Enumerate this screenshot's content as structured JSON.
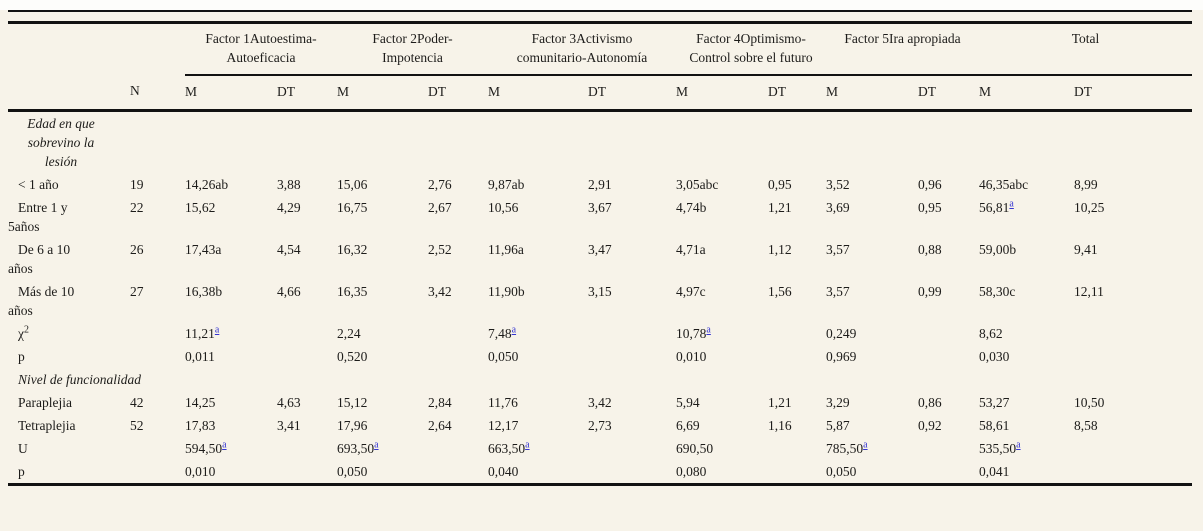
{
  "table": {
    "groups": [
      {
        "label": "Factor 1Autoestima-Autoeficacia"
      },
      {
        "label": "Factor 2Poder-Impotencia"
      },
      {
        "label": "Factor 3Activismo comunitario-Autonomía"
      },
      {
        "label": "Factor 4Optimismo-Control sobre el futuro"
      },
      {
        "label": "Factor 5Ira apropiada"
      },
      {
        "label": "Total"
      }
    ],
    "sub_headers": [
      "",
      "N",
      "M",
      "DT",
      "M",
      "DT",
      "M",
      "DT",
      "M",
      "DT",
      "M",
      "DT",
      "M",
      "DT"
    ],
    "rows": [
      {
        "style": "section-center",
        "label": {
          "t": "Edad en que sobrevino la lesión",
          "sup": ""
        },
        "n": "",
        "cells": [
          {
            "t": ""
          },
          {
            "t": ""
          },
          {
            "t": ""
          },
          {
            "t": ""
          },
          {
            "t": ""
          },
          {
            "t": ""
          },
          {
            "t": ""
          },
          {
            "t": ""
          },
          {
            "t": ""
          },
          {
            "t": ""
          },
          {
            "t": ""
          },
          {
            "t": ""
          }
        ]
      },
      {
        "style": "",
        "label": {
          "t": "< 1 año",
          "sup": ""
        },
        "n": "19",
        "cells": [
          {
            "t": "14,26ab"
          },
          {
            "t": "3,88"
          },
          {
            "t": "15,06"
          },
          {
            "t": "2,76"
          },
          {
            "t": "9,87ab"
          },
          {
            "t": "2,91"
          },
          {
            "t": "3,05abc"
          },
          {
            "t": "0,95"
          },
          {
            "t": "3,52"
          },
          {
            "t": "0,96"
          },
          {
            "t": "46,35abc"
          },
          {
            "t": "8,99"
          }
        ]
      },
      {
        "style": "",
        "label": {
          "t": "Entre 1 y 5años",
          "sup": ""
        },
        "n": "22",
        "cells": [
          {
            "t": "15,62"
          },
          {
            "t": "4,29"
          },
          {
            "t": "16,75"
          },
          {
            "t": "2,67"
          },
          {
            "t": "10,56"
          },
          {
            "t": "3,67"
          },
          {
            "t": "4,74b"
          },
          {
            "t": "1,21"
          },
          {
            "t": "3,69"
          },
          {
            "t": "0,95"
          },
          {
            "t": "56,81",
            "sup": "a"
          },
          {
            "t": "10,25"
          }
        ]
      },
      {
        "style": "",
        "label": {
          "t": "De 6 a 10 años",
          "sup": ""
        },
        "n": "26",
        "cells": [
          {
            "t": "17,43a"
          },
          {
            "t": "4,54"
          },
          {
            "t": "16,32"
          },
          {
            "t": "2,52"
          },
          {
            "t": "11,96a"
          },
          {
            "t": "3,47"
          },
          {
            "t": "4,71a"
          },
          {
            "t": "1,12"
          },
          {
            "t": "3,57"
          },
          {
            "t": "0,88"
          },
          {
            "t": "59,00b"
          },
          {
            "t": "9,41"
          }
        ]
      },
      {
        "style": "",
        "label": {
          "t": "Más de 10 años",
          "sup": ""
        },
        "n": "27",
        "cells": [
          {
            "t": "16,38b"
          },
          {
            "t": "4,66"
          },
          {
            "t": "16,35"
          },
          {
            "t": "3,42"
          },
          {
            "t": "11,90b"
          },
          {
            "t": "3,15"
          },
          {
            "t": "4,97c"
          },
          {
            "t": "1,56"
          },
          {
            "t": "3,57"
          },
          {
            "t": "0,99"
          },
          {
            "t": "58,30c"
          },
          {
            "t": "12,11"
          }
        ]
      },
      {
        "style": "",
        "label": {
          "t": "χ",
          "sup": "2"
        },
        "n": "",
        "cells": [
          {
            "t": "11,21",
            "sup": "a"
          },
          {
            "t": ""
          },
          {
            "t": "2,24"
          },
          {
            "t": ""
          },
          {
            "t": "7,48",
            "sup": "a"
          },
          {
            "t": ""
          },
          {
            "t": "10,78",
            "sup": "a"
          },
          {
            "t": ""
          },
          {
            "t": "0,249"
          },
          {
            "t": ""
          },
          {
            "t": "8,62"
          },
          {
            "t": ""
          }
        ]
      },
      {
        "style": "",
        "label": {
          "t": "p",
          "sup": ""
        },
        "n": "",
        "cells": [
          {
            "t": "0,011"
          },
          {
            "t": ""
          },
          {
            "t": "0,520"
          },
          {
            "t": ""
          },
          {
            "t": "0,050"
          },
          {
            "t": ""
          },
          {
            "t": "0,010"
          },
          {
            "t": ""
          },
          {
            "t": "0,969"
          },
          {
            "t": ""
          },
          {
            "t": "0,030"
          },
          {
            "t": ""
          }
        ]
      },
      {
        "style": "section-span",
        "label": {
          "t": "Nivel de funcionalidad",
          "sup": ""
        },
        "n": "",
        "cells": []
      },
      {
        "style": "",
        "label": {
          "t": "Paraplejia",
          "sup": ""
        },
        "n": "42",
        "cells": [
          {
            "t": "14,25"
          },
          {
            "t": "4,63"
          },
          {
            "t": "15,12"
          },
          {
            "t": "2,84"
          },
          {
            "t": "11,76"
          },
          {
            "t": "3,42"
          },
          {
            "t": "5,94"
          },
          {
            "t": "1,21"
          },
          {
            "t": "3,29"
          },
          {
            "t": "0,86"
          },
          {
            "t": "53,27"
          },
          {
            "t": "10,50"
          }
        ]
      },
      {
        "style": "",
        "label": {
          "t": "Tetraplejia",
          "sup": ""
        },
        "n": "52",
        "cells": [
          {
            "t": "17,83"
          },
          {
            "t": "3,41"
          },
          {
            "t": "17,96"
          },
          {
            "t": "2,64"
          },
          {
            "t": "12,17"
          },
          {
            "t": "2,73"
          },
          {
            "t": "6,69"
          },
          {
            "t": "1,16"
          },
          {
            "t": "5,87"
          },
          {
            "t": "0,92"
          },
          {
            "t": "58,61"
          },
          {
            "t": "8,58"
          }
        ]
      },
      {
        "style": "",
        "label": {
          "t": "U",
          "sup": ""
        },
        "n": "",
        "cells": [
          {
            "t": "594,50",
            "sup": "a"
          },
          {
            "t": ""
          },
          {
            "t": "693,50",
            "sup": "a"
          },
          {
            "t": ""
          },
          {
            "t": "663,50",
            "sup": "a"
          },
          {
            "t": ""
          },
          {
            "t": "690,50"
          },
          {
            "t": ""
          },
          {
            "t": "785,50",
            "sup": "a"
          },
          {
            "t": ""
          },
          {
            "t": "535,50",
            "sup": "a"
          },
          {
            "t": ""
          }
        ]
      },
      {
        "style": "",
        "label": {
          "t": "p",
          "sup": ""
        },
        "n": "",
        "cells": [
          {
            "t": "0,010"
          },
          {
            "t": ""
          },
          {
            "t": "0,050"
          },
          {
            "t": ""
          },
          {
            "t": "0,040"
          },
          {
            "t": ""
          },
          {
            "t": "0,080"
          },
          {
            "t": ""
          },
          {
            "t": "0,050"
          },
          {
            "t": ""
          },
          {
            "t": "0,041"
          },
          {
            "t": ""
          }
        ]
      }
    ]
  },
  "colors": {
    "background": "#f7f3e9",
    "rule": "#121212",
    "text": "#1d1c1a",
    "footnote_link": "#3535d2"
  }
}
